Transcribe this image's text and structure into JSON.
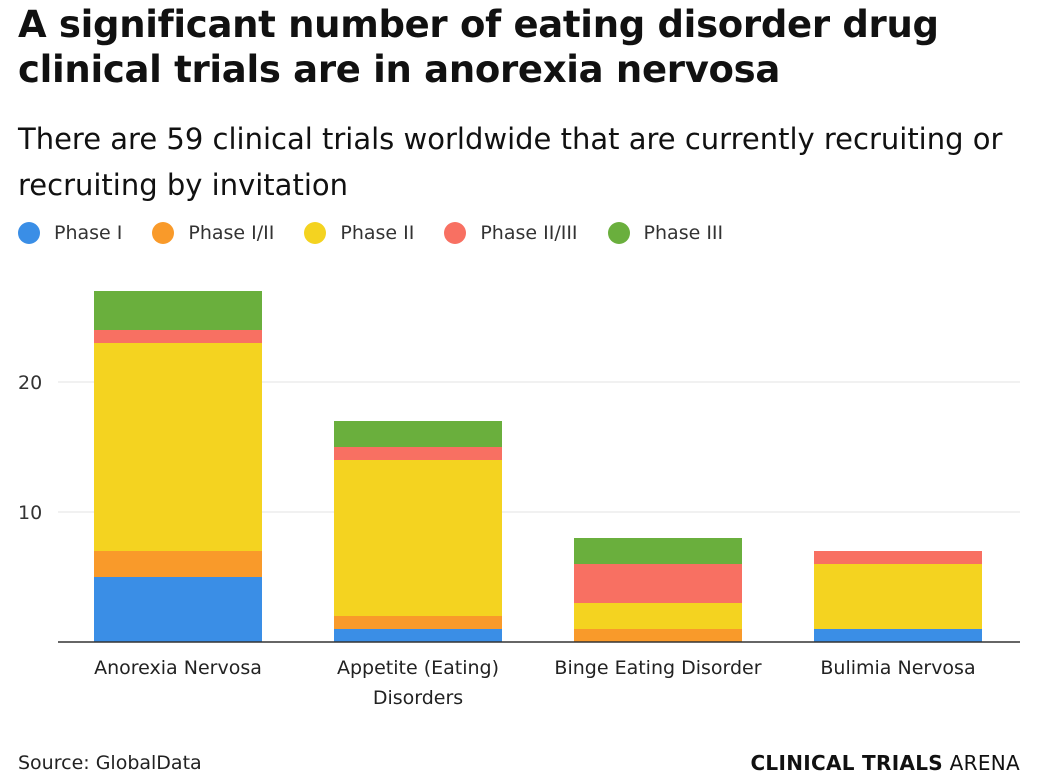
{
  "title": "A significant number of eating disorder drug clinical trials are in anorexia nervosa",
  "subtitle": "There are 59 clinical trials worldwide that are currently recruiting or recruiting by invitation",
  "source": "Source: GlobalData",
  "brand": {
    "bold": "CLINICAL TRIALS",
    "light": " ARENA"
  },
  "chart_data": {
    "type": "bar",
    "stacked": true,
    "categories": [
      [
        "Anorexia Nervosa"
      ],
      [
        "Appetite (Eating)",
        "Disorders"
      ],
      [
        "Binge Eating Disorder"
      ],
      [
        "Bulimia Nervosa"
      ]
    ],
    "series": [
      {
        "name": "Phase I",
        "color": "#3a8ee6",
        "values": [
          5,
          1,
          0,
          1
        ]
      },
      {
        "name": "Phase I/II",
        "color": "#f99a2a",
        "values": [
          2,
          1,
          1,
          0
        ]
      },
      {
        "name": "Phase II",
        "color": "#f4d320",
        "values": [
          16,
          12,
          2,
          5
        ]
      },
      {
        "name": "Phase II/III",
        "color": "#f87062",
        "values": [
          1,
          1,
          3,
          1
        ]
      },
      {
        "name": "Phase III",
        "color": "#6aaf3d",
        "values": [
          3,
          2,
          2,
          0
        ]
      }
    ],
    "yticks": [
      10,
      20
    ],
    "ylim": [
      0,
      29
    ],
    "grid": true,
    "legend": "top-left"
  }
}
